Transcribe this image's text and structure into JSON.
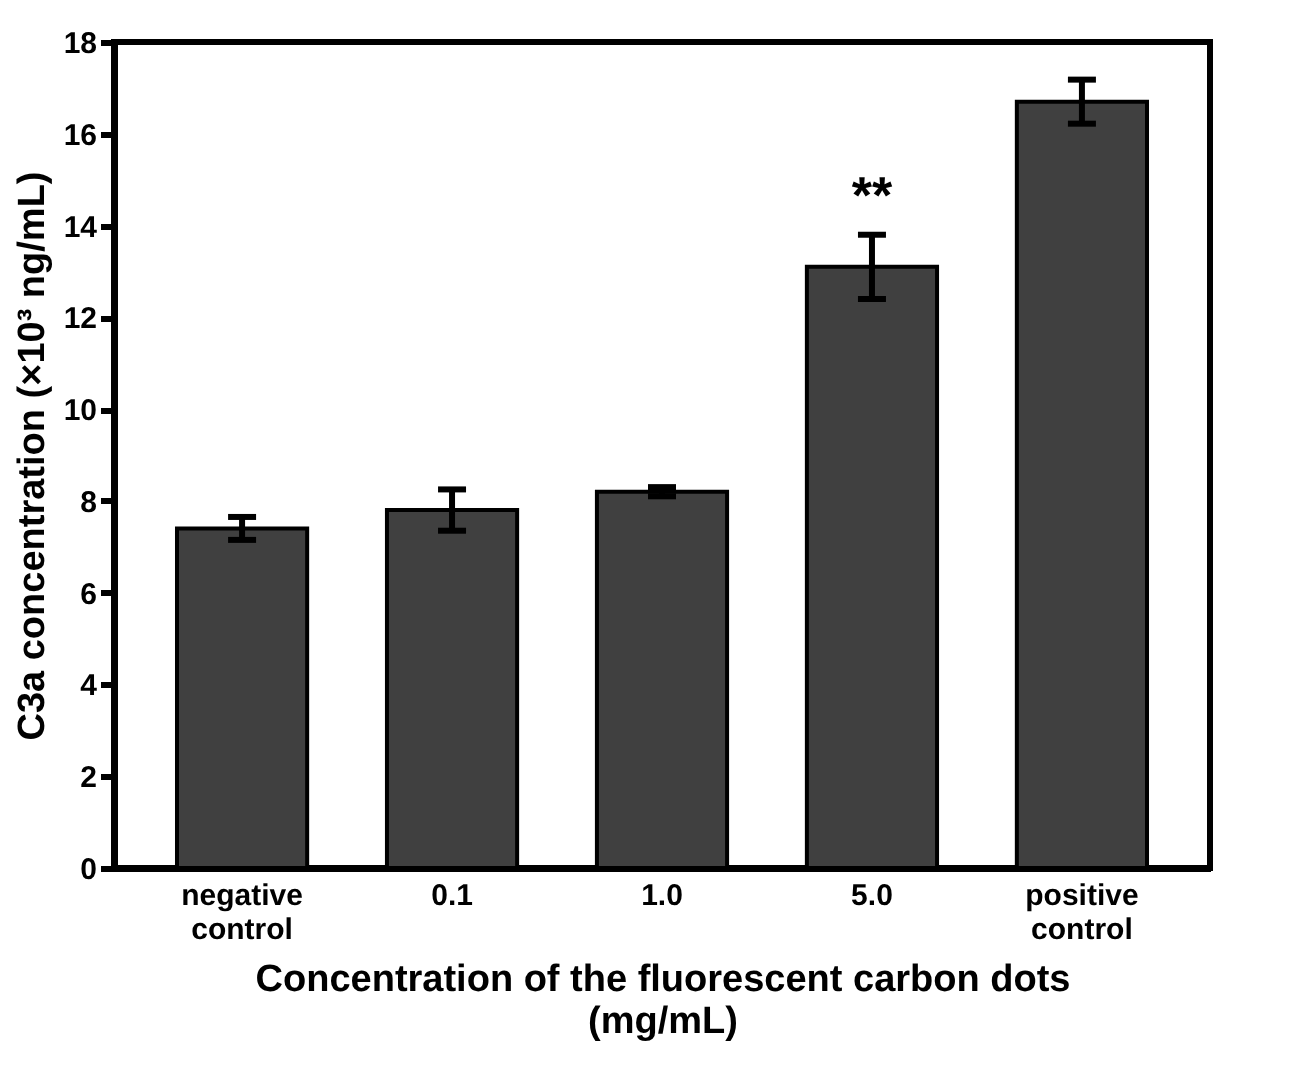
{
  "chart_data": {
    "type": "bar",
    "xlabel": "Concentration of the fluorescent carbon dots (mg/mL)",
    "ylabel": "C3a concentration (×10³ ng/mL)",
    "categories": [
      "negative control",
      "0.1",
      "1.0",
      "5.0",
      "positive control"
    ],
    "values": [
      7.4,
      7.8,
      8.2,
      13.1,
      16.7
    ],
    "errors": [
      0.25,
      0.45,
      0.1,
      0.7,
      0.48
    ],
    "color": "#404040",
    "ylim": [
      0,
      18
    ],
    "yticks": [
      0,
      2,
      4,
      6,
      8,
      10,
      12,
      14,
      16,
      18
    ],
    "grid": false,
    "annotations": [
      {
        "text": "**",
        "x": "5.0",
        "y": 13.1
      }
    ]
  }
}
